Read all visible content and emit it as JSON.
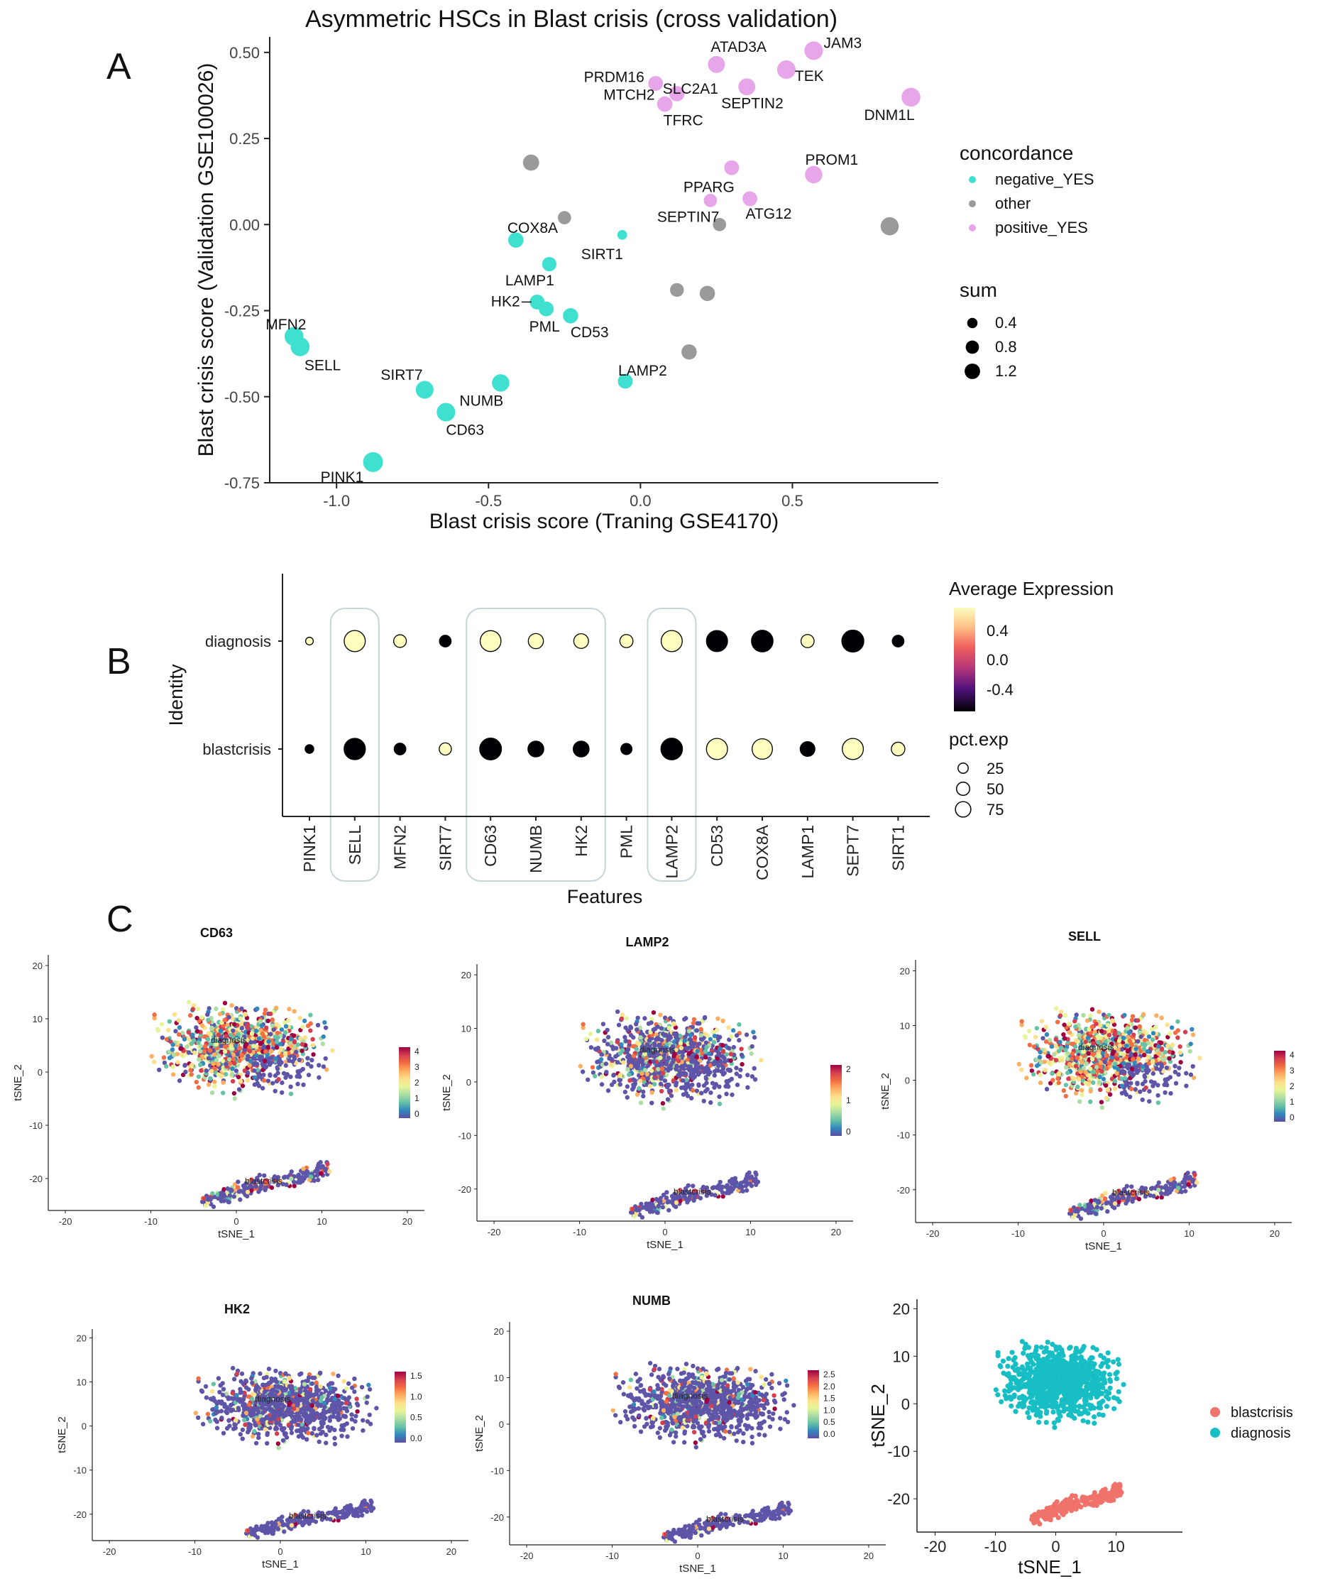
{
  "panels": {
    "a": "A",
    "b": "B",
    "c": "C"
  },
  "chart_data": [
    {
      "type": "scatter",
      "title": "Asymmetric HSCs in Blast crisis (cross validation)",
      "xlabel": "Blast crisis score (Traning GSE4170)",
      "ylabel": "Blast crisis score (Validation GSE100026)",
      "xlim": [
        -1.22,
        0.98
      ],
      "ylim": [
        -0.75,
        0.545
      ],
      "xticks": [
        -1.0,
        -0.5,
        0.0,
        0.5
      ],
      "xtick_labels": [
        "-1.0",
        "-0.5",
        "0.0",
        "0.5"
      ],
      "yticks": [
        -0.75,
        -0.5,
        -0.25,
        0.0,
        0.25,
        0.5
      ],
      "ytick_labels": [
        "-0.75",
        "-0.50",
        "-0.25",
        "0.00",
        "0.25",
        "0.50"
      ],
      "legend_concordance_title": "concordance",
      "legend_concordance": [
        {
          "label": "negative_YES",
          "color": "#40e0d0"
        },
        {
          "label": "other",
          "color": "#9a9a9a"
        },
        {
          "label": "positive_YES",
          "color": "#e8a6ea"
        }
      ],
      "legend_sum_title": "sum",
      "legend_sum": [
        {
          "label": "0.4",
          "value": 0.4
        },
        {
          "label": "0.8",
          "value": 0.8
        },
        {
          "label": "1.2",
          "value": 1.2
        }
      ],
      "points": [
        {
          "x": 0.57,
          "y": 0.505,
          "sum": 1.0,
          "group": "positive_YES",
          "label": "JAM3"
        },
        {
          "x": 0.25,
          "y": 0.465,
          "sum": 0.8,
          "group": "positive_YES",
          "label": "ATAD3A"
        },
        {
          "x": 0.48,
          "y": 0.45,
          "sum": 1.0,
          "group": "positive_YES",
          "label": "TEK"
        },
        {
          "x": 0.05,
          "y": 0.41,
          "sum": 0.55,
          "group": "positive_YES",
          "label": "PRDM16"
        },
        {
          "x": 0.12,
          "y": 0.38,
          "sum": 0.6,
          "group": "positive_YES",
          "label": "SLC2A1"
        },
        {
          "x": 0.35,
          "y": 0.4,
          "sum": 0.8,
          "group": "positive_YES",
          "label": "SEPTIN2"
        },
        {
          "x": 0.08,
          "y": 0.35,
          "sum": 0.6,
          "group": "positive_YES",
          "label": "MTCH2"
        },
        {
          "x": 0.08,
          "y": 0.35,
          "sum": 0.6,
          "group": "positive_YES",
          "label": "TFRC"
        },
        {
          "x": 0.89,
          "y": 0.37,
          "sum": 1.05,
          "group": "positive_YES",
          "label": "DNM1L"
        },
        {
          "x": 0.57,
          "y": 0.145,
          "sum": 0.85,
          "group": "positive_YES",
          "label": "PROM1"
        },
        {
          "x": 0.3,
          "y": 0.165,
          "sum": 0.55,
          "group": "positive_YES",
          "label": "PPARG"
        },
        {
          "x": 0.23,
          "y": 0.07,
          "sum": 0.4,
          "group": "positive_YES",
          "label": "SEPTIN7"
        },
        {
          "x": 0.36,
          "y": 0.075,
          "sum": 0.55,
          "group": "positive_YES",
          "label": "ATG12"
        },
        {
          "x": -0.36,
          "y": 0.18,
          "sum": 0.7,
          "group": "other",
          "label": ""
        },
        {
          "x": -0.25,
          "y": 0.02,
          "sum": 0.4,
          "group": "other",
          "label": ""
        },
        {
          "x": 0.26,
          "y": 0.0,
          "sum": 0.4,
          "group": "other",
          "label": ""
        },
        {
          "x": 0.82,
          "y": -0.005,
          "sum": 0.95,
          "group": "other",
          "label": ""
        },
        {
          "x": 0.12,
          "y": -0.19,
          "sum": 0.45,
          "group": "other",
          "label": ""
        },
        {
          "x": 0.22,
          "y": -0.2,
          "sum": 0.6,
          "group": "other",
          "label": ""
        },
        {
          "x": 0.16,
          "y": -0.37,
          "sum": 0.6,
          "group": "other",
          "label": ""
        },
        {
          "x": -0.41,
          "y": -0.045,
          "sum": 0.6,
          "group": "negative_YES",
          "label": "COX8A"
        },
        {
          "x": -0.06,
          "y": -0.03,
          "sum": 0.15,
          "group": "negative_YES",
          "label": "SIRT1"
        },
        {
          "x": -0.3,
          "y": -0.115,
          "sum": 0.5,
          "group": "negative_YES",
          "label": "LAMP1"
        },
        {
          "x": -0.34,
          "y": -0.225,
          "sum": 0.55,
          "group": "negative_YES",
          "label": "HK2"
        },
        {
          "x": -0.31,
          "y": -0.245,
          "sum": 0.55,
          "group": "negative_YES",
          "label": "PML"
        },
        {
          "x": -0.23,
          "y": -0.265,
          "sum": 0.6,
          "group": "negative_YES",
          "label": "CD53"
        },
        {
          "x": -1.14,
          "y": -0.325,
          "sum": 1.05,
          "group": "negative_YES",
          "label": "MFN2"
        },
        {
          "x": -1.12,
          "y": -0.355,
          "sum": 1.05,
          "group": "negative_YES",
          "label": "SELL"
        },
        {
          "x": -0.71,
          "y": -0.48,
          "sum": 0.9,
          "group": "negative_YES",
          "label": "SIRT7"
        },
        {
          "x": -0.46,
          "y": -0.46,
          "sum": 0.85,
          "group": "negative_YES",
          "label": "NUMB"
        },
        {
          "x": -0.64,
          "y": -0.545,
          "sum": 1.0,
          "group": "negative_YES",
          "label": "CD63"
        },
        {
          "x": -0.05,
          "y": -0.455,
          "sum": 0.55,
          "group": "negative_YES",
          "label": "LAMP2"
        },
        {
          "x": -0.88,
          "y": -0.69,
          "sum": 1.2,
          "group": "negative_YES",
          "label": "PINK1"
        }
      ]
    },
    {
      "type": "dotplot",
      "xlabel": "Features",
      "ylabel": "Identity",
      "identities": [
        "diagnosis",
        "blastcrisis"
      ],
      "features": [
        "PINK1",
        "SELL",
        "MFN2",
        "SIRT7",
        "CD63",
        "NUMB",
        "HK2",
        "PML",
        "LAMP2",
        "CD53",
        "COX8A",
        "LAMP1",
        "SEPT7",
        "SIRT1"
      ],
      "boxed_groups": [
        [
          "SELL"
        ],
        [
          "CD63",
          "NUMB",
          "HK2"
        ],
        [
          "LAMP2"
        ]
      ],
      "avg_expression": [
        [
          0.6,
          0.6,
          0.6,
          -0.6,
          0.6,
          0.6,
          0.6,
          0.6,
          0.6,
          -0.6,
          -0.6,
          0.6,
          -0.6,
          -0.6
        ],
        [
          -0.6,
          -0.6,
          -0.6,
          0.6,
          -0.6,
          -0.6,
          -0.6,
          -0.6,
          -0.6,
          0.6,
          0.6,
          -0.6,
          0.6,
          0.6
        ]
      ],
      "pct_exp": [
        [
          3,
          72,
          18,
          14,
          70,
          30,
          28,
          20,
          72,
          72,
          76,
          20,
          80,
          14
        ],
        [
          5,
          74,
          14,
          16,
          78,
          34,
          34,
          12,
          76,
          72,
          66,
          28,
          72,
          22
        ]
      ],
      "legend_expr_title": "Average Expression",
      "legend_expr_ticks": [
        "0.4",
        "0.0",
        "-0.4"
      ],
      "legend_pct_title": "pct.exp",
      "legend_pct": [
        {
          "label": "25",
          "value": 25
        },
        {
          "label": "50",
          "value": 50
        },
        {
          "label": "75",
          "value": 75
        }
      ]
    },
    {
      "type": "scatter",
      "subtype": "tsne_feature_plots",
      "xlabel": "tSNE_1",
      "ylabel": "tSNE_2",
      "xticks": [
        "-20",
        "-10",
        "0",
        "10",
        "20"
      ],
      "yticks": [
        "20",
        "10",
        "0",
        "-10",
        "-20"
      ],
      "plots": [
        {
          "title": "CD63",
          "legend": [
            "4",
            "3",
            "2",
            "1",
            "0"
          ],
          "max": 4,
          "hot": 0.85,
          "tag": "diagnosis",
          "tag2": "blastcrisis"
        },
        {
          "title": "LAMP2",
          "legend": [
            "2",
            "1",
            "0"
          ],
          "max": 2.6,
          "hot": 0.45,
          "tag": "diagnosis",
          "tag2": "blastcrisis"
        },
        {
          "title": "SELL",
          "legend": [
            "4",
            "3",
            "2",
            "1",
            "0"
          ],
          "max": 4.2,
          "hot": 0.95,
          "tag": "diagnosis",
          "tag2": "blastcrisis"
        },
        {
          "title": "HK2",
          "legend": [
            "1.5",
            "1.0",
            "0.5",
            "0.0"
          ],
          "max": 1.8,
          "hot": 0.25,
          "tag": "diagnosis",
          "tag2": "blastcrisis"
        },
        {
          "title": "NUMB",
          "legend": [
            "2.5",
            "2.0",
            "1.5",
            "1.0",
            "0.5",
            "0.0"
          ],
          "max": 2.6,
          "hot": 0.22,
          "tag": "diagnosis",
          "tag2": "blastcrisis"
        }
      ],
      "identity_plot": {
        "xticks": [
          "-20",
          "-10",
          "0",
          "10"
        ],
        "yticks": [
          "20",
          "10",
          "0",
          "-10",
          "-20"
        ],
        "legend": [
          {
            "label": "blastcrisis",
            "color": "#f0736b"
          },
          {
            "label": "diagnosis",
            "color": "#17bfc4"
          }
        ]
      }
    }
  ]
}
